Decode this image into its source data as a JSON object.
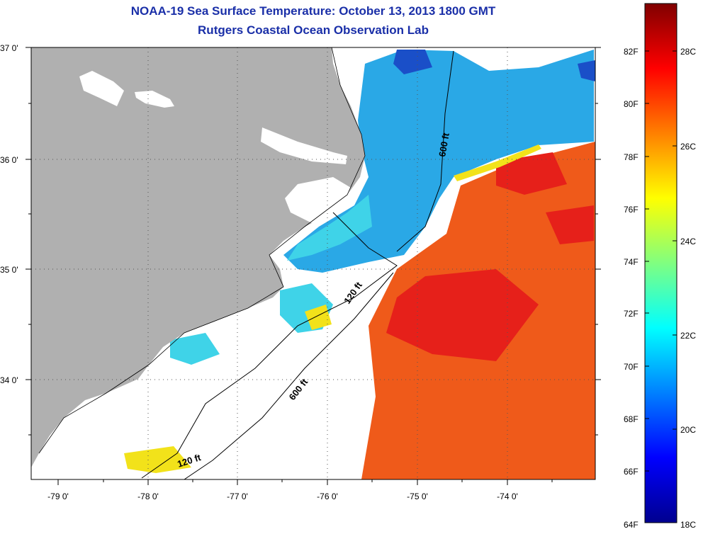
{
  "title": {
    "line1": "NOAA-19 Sea Surface Temperature:  October 13, 2013 1800 GMT",
    "line2": "Rutgers Coastal Ocean Observation Lab"
  },
  "map": {
    "lat_labels": [
      "37 0'",
      "36 0'",
      "35 0'",
      "34 0'"
    ],
    "lon_labels": [
      "-79 0'",
      "-78 0'",
      "-77 0'",
      "-76 0'",
      "-75 0'",
      "-74 0'"
    ],
    "contour_labels": [
      "600 ft",
      "120 ft",
      "600 ft",
      "120 ft"
    ],
    "colors": {
      "land": "#b0b0b0",
      "cloud": "#ffffff",
      "shelf_cool": "#2aa8e6",
      "shelf_mid": "#3fd3e8",
      "warm": "#ef5a1a",
      "hot": "#e6201a",
      "yellow": "#f2e21a",
      "deep_blue": "#1a4fc8"
    }
  },
  "colorbar": {
    "f_labels": [
      "82F",
      "80F",
      "78F",
      "76F",
      "74F",
      "72F",
      "70F",
      "68F",
      "66F",
      "64F"
    ],
    "c_labels": [
      "28C",
      "26C",
      "24C",
      "22C",
      "20C",
      "18C"
    ],
    "gradient": [
      "#00008f",
      "#0000ff",
      "#0080ff",
      "#00ffff",
      "#80ff80",
      "#ffff00",
      "#ff8000",
      "#ff0000",
      "#800000"
    ]
  }
}
